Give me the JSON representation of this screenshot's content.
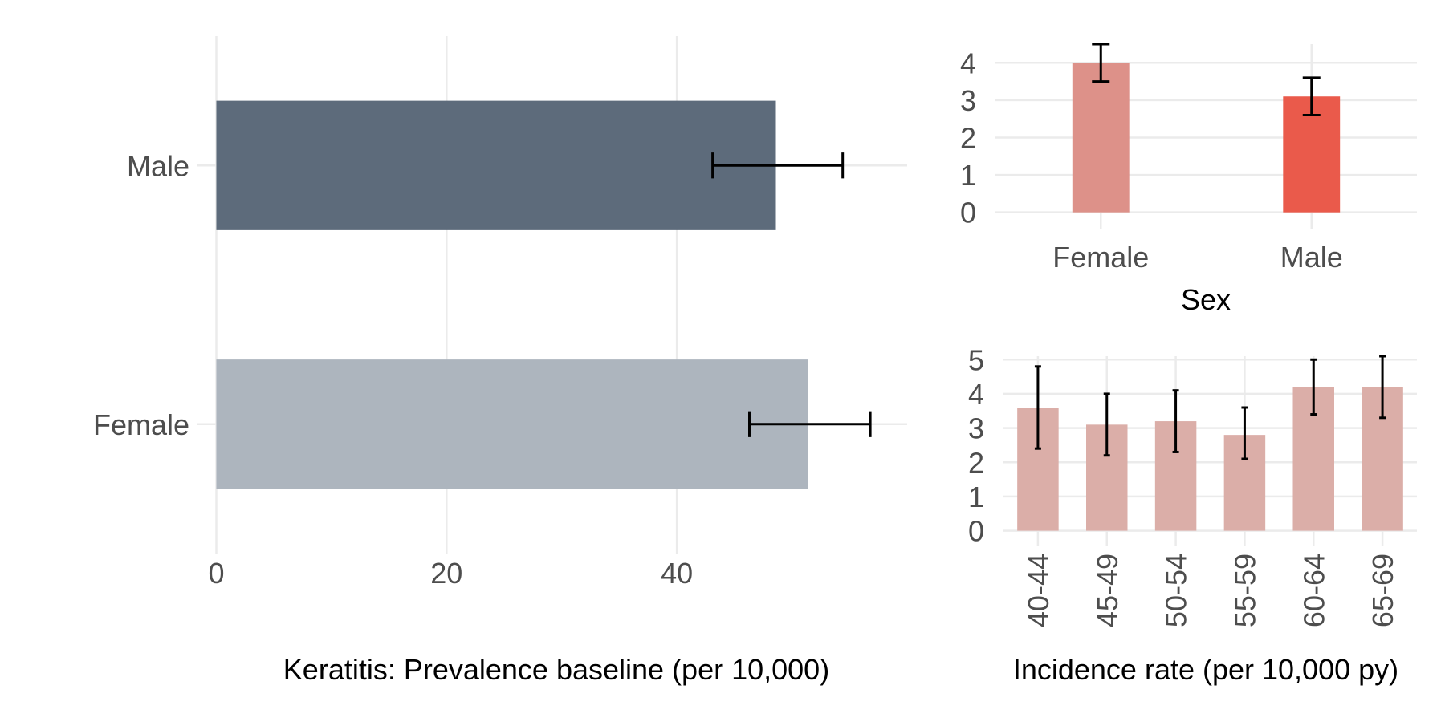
{
  "chart_data": [
    {
      "type": "bar",
      "orientation": "horizontal",
      "title": "",
      "categories": [
        "Male",
        "Female"
      ],
      "values": [
        48.6,
        51.4
      ],
      "error_low": [
        43.1,
        46.3
      ],
      "error_high": [
        54.4,
        56.8
      ],
      "colors": [
        "#5d6b7b",
        "#adb5be"
      ],
      "xlabel": "Keratitis: Prevalence baseline (per 10,000)",
      "ylabel": "",
      "xlim": [
        -0.8,
        60
      ],
      "x_ticks": [
        0,
        20,
        40
      ],
      "x_tick_labels": [
        "0",
        "20",
        "40"
      ],
      "grid": true
    },
    {
      "type": "bar",
      "title": "",
      "categories": [
        "Female",
        "Male"
      ],
      "values": [
        4.0,
        3.1
      ],
      "error_low": [
        3.5,
        2.6
      ],
      "error_high": [
        4.5,
        3.6
      ],
      "colors": [
        "#dd9189",
        "#ea5a4b"
      ],
      "xlabel": "Sex",
      "ylabel": "",
      "ylim": [
        -0.2,
        4.5
      ],
      "y_ticks": [
        0,
        1,
        2,
        3,
        4
      ],
      "y_tick_labels": [
        "0",
        "1",
        "2",
        "3",
        "4"
      ],
      "grid": true
    },
    {
      "type": "bar",
      "title": "",
      "categories": [
        "40-44",
        "45-49",
        "50-54",
        "55-59",
        "60-64",
        "65-69"
      ],
      "values": [
        3.6,
        3.1,
        3.2,
        2.8,
        4.2,
        4.2
      ],
      "error_low": [
        2.4,
        2.2,
        2.3,
        2.1,
        3.4,
        3.3
      ],
      "error_high": [
        4.8,
        4.0,
        4.1,
        3.6,
        5.0,
        5.1
      ],
      "colors": [
        "#dbaea8"
      ],
      "xlabel": "Incidence rate (per 10,000 py)",
      "ylabel": "",
      "ylim": [
        -0.15,
        5.1
      ],
      "y_ticks": [
        0,
        1,
        2,
        3,
        4,
        5
      ],
      "y_tick_labels": [
        "0",
        "1",
        "2",
        "3",
        "4",
        "5"
      ],
      "grid": true
    }
  ]
}
